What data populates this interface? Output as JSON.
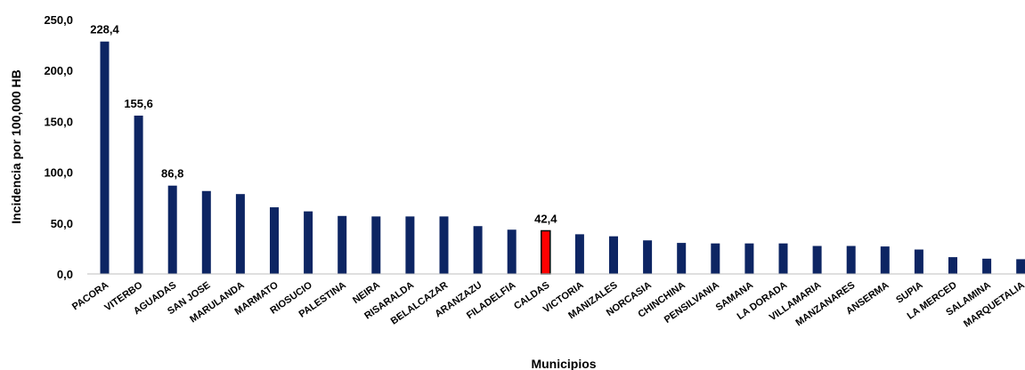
{
  "chart_data": {
    "type": "bar",
    "title": "",
    "xlabel": "Municipios",
    "ylabel": "Incidencia por 100,000 HB",
    "ylim": [
      0,
      250
    ],
    "y_ticks": [
      "0,0",
      "50,0",
      "100,0",
      "150,0",
      "200,0",
      "250,0"
    ],
    "grid": false,
    "legend": "none",
    "categories": [
      "PACORA",
      "VITERBO",
      "AGUADAS",
      "SAN JOSE",
      "MARULANDA",
      "MARMATO",
      "RIOSUCIO",
      "PALESTINA",
      "NEIRA",
      "RISARALDA",
      "BELALCAZAR",
      "ARANZAZU",
      "FILADELFIA",
      "CALDAS",
      "VICTORIA",
      "MANIZALES",
      "NORCASIA",
      "CHINCHINA",
      "PENSILVANIA",
      "SAMANA",
      "LA DORADA",
      "VILLAMARIA",
      "MANZANARES",
      "ANSERMA",
      "SUPIA",
      "LA MERCED",
      "SALAMINA",
      "MARQUETALIA"
    ],
    "values": [
      228.4,
      155.6,
      86.8,
      81.5,
      78.5,
      65.5,
      61.5,
      57.0,
      56.5,
      56.5,
      56.5,
      47.0,
      43.5,
      42.4,
      39.0,
      37.0,
      33.0,
      30.5,
      30.0,
      30.0,
      30.0,
      27.5,
      27.5,
      27.0,
      24.0,
      16.5,
      15.0,
      14.5
    ],
    "data_labels": [
      {
        "category": "PACORA",
        "text": "228,4"
      },
      {
        "category": "VITERBO",
        "text": "155,6"
      },
      {
        "category": "AGUADAS",
        "text": "86,8"
      },
      {
        "category": "CALDAS",
        "text": "42,4"
      }
    ],
    "highlight_category": "CALDAS",
    "colors": {
      "bar": "#0d2563",
      "highlight": "#ff0000",
      "highlight_border": "#000000",
      "axis": "#bfbfbf"
    }
  }
}
